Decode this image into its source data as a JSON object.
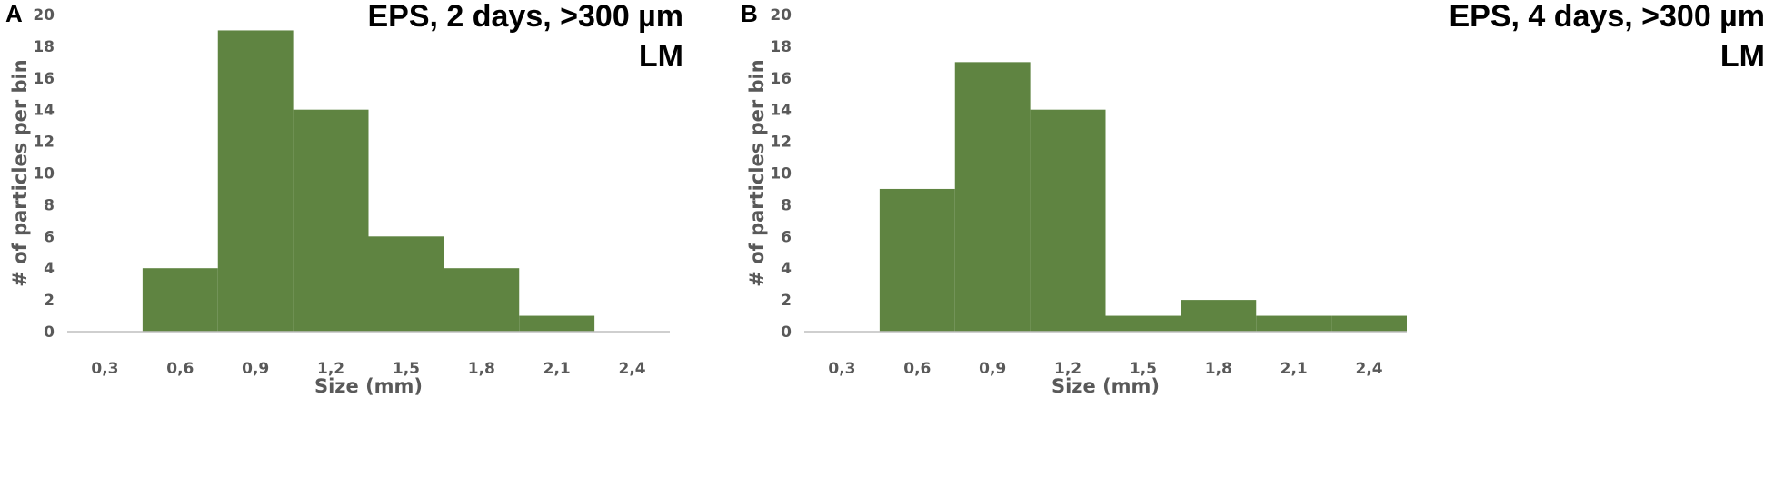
{
  "chart_data": [
    {
      "panel_label": "A",
      "type": "bar",
      "title_lines": [
        "EPS, 2 days, >300 µm",
        "LM"
      ],
      "xlabel": "Size (mm)",
      "ylabel": "# of particles per bin",
      "ylim": [
        0,
        20
      ],
      "yticks": [
        "0",
        "2",
        "4",
        "6",
        "8",
        "10",
        "12",
        "14",
        "16",
        "18",
        "20"
      ],
      "xticks": [
        "0,3",
        "0,6",
        "0,9",
        "1,2",
        "1,5",
        "1,8",
        "2,1",
        "2,4"
      ],
      "bins": [
        "0,3",
        "0,6",
        "0,9",
        "1,2",
        "1,5",
        "1,8",
        "2,1",
        "2,4"
      ],
      "values": [
        0,
        4,
        19,
        14,
        6,
        4,
        1,
        0
      ],
      "bar_color": "#5f8441",
      "grid": false
    },
    {
      "panel_label": "B",
      "type": "bar",
      "title_lines": [
        "EPS, 4 days, >300 µm",
        "LM"
      ],
      "xlabel": "Size (mm)",
      "ylabel": "# of particles per bin",
      "ylim": [
        0,
        20
      ],
      "yticks": [
        "0",
        "2",
        "4",
        "6",
        "8",
        "10",
        "12",
        "14",
        "16",
        "18",
        "20"
      ],
      "xticks": [
        "0,3",
        "0,6",
        "0,9",
        "1,2",
        "1,5",
        "1,8",
        "2,1",
        "2,4"
      ],
      "bins": [
        "0,3",
        "0,6",
        "0,9",
        "1,2",
        "1,5",
        "1,8",
        "2,1",
        "2,4"
      ],
      "values": [
        0,
        9,
        17,
        14,
        1,
        2,
        1,
        1
      ],
      "bar_color": "#5f8441",
      "grid": false
    }
  ]
}
